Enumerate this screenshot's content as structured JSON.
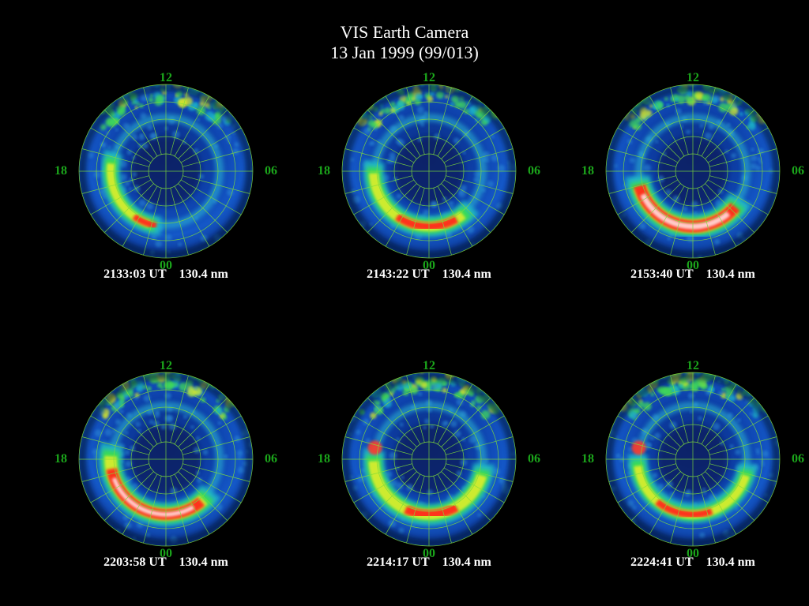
{
  "title": "VIS Earth Camera",
  "subtitle": "13 Jan 1999 (99/013)",
  "colors": {
    "background": "#000000",
    "grid": "#7fdc3a",
    "hour_label": "#1ba61b",
    "text": "#ffffff"
  },
  "hour_labels": {
    "top": "12",
    "left": "18",
    "right": "06",
    "bottom": "00"
  },
  "panels": [
    {
      "time": "2133:03 UT",
      "wavelength": "130.4 nm",
      "arc_intensity": 0.35,
      "arc_start_deg": 185,
      "arc_end_deg": 290,
      "hot_start_deg": 190,
      "hot_end_deg": 215,
      "gap_on_dusk": false
    },
    {
      "time": "2143:22 UT",
      "wavelength": "130.4 nm",
      "arc_intensity": 0.5,
      "arc_start_deg": 130,
      "arc_end_deg": 280,
      "hot_start_deg": 150,
      "hot_end_deg": 215,
      "gap_on_dusk": false
    },
    {
      "time": "2153:40 UT",
      "wavelength": "130.4 nm",
      "arc_intensity": 0.95,
      "arc_start_deg": 120,
      "arc_end_deg": 265,
      "hot_start_deg": 130,
      "hot_end_deg": 255,
      "gap_on_dusk": false
    },
    {
      "time": "2203:58 UT",
      "wavelength": "130.4 nm",
      "arc_intensity": 0.8,
      "arc_start_deg": 125,
      "arc_end_deg": 285,
      "hot_start_deg": 140,
      "hot_end_deg": 260,
      "gap_on_dusk": false
    },
    {
      "time": "2214:17 UT",
      "wavelength": "130.4 nm",
      "arc_intensity": 0.6,
      "arc_start_deg": 95,
      "arc_end_deg": 280,
      "hot_start_deg": 150,
      "hot_end_deg": 205,
      "gap_on_dusk": true
    },
    {
      "time": "2224:41 UT",
      "wavelength": "130.4 nm",
      "arc_intensity": 0.4,
      "arc_start_deg": 95,
      "arc_end_deg": 275,
      "hot_start_deg": 160,
      "hot_end_deg": 220,
      "gap_on_dusk": true
    }
  ]
}
